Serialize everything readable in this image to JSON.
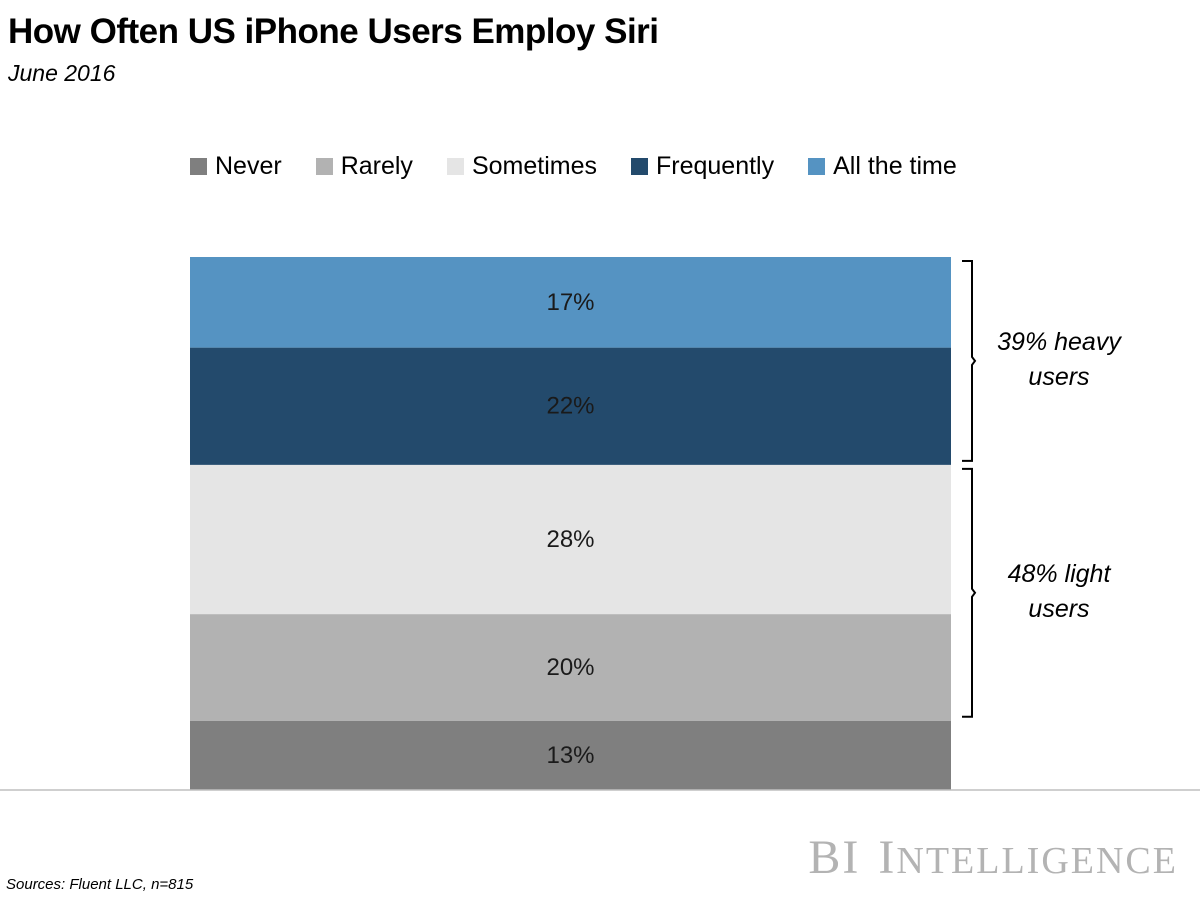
{
  "chart_data": {
    "type": "bar",
    "stacked": true,
    "title": "How Often US iPhone Users Employ Siri",
    "subtitle": "June 2016",
    "categories": [
      ""
    ],
    "series": [
      {
        "name": "Never",
        "values": [
          13
        ],
        "label": "13%",
        "color": "#7f7f7f"
      },
      {
        "name": "Rarely",
        "values": [
          20
        ],
        "label": "20%",
        "color": "#b2b2b2"
      },
      {
        "name": "Sometimes",
        "values": [
          28
        ],
        "label": "28%",
        "color": "#e5e5e5"
      },
      {
        "name": "Frequently",
        "values": [
          22
        ],
        "label": "22%",
        "color": "#234a6c"
      },
      {
        "name": "All the time",
        "values": [
          17
        ],
        "label": "17%",
        "color": "#5593c2"
      }
    ],
    "ylim": [
      0,
      100
    ],
    "legend_position": "top",
    "annotations": [
      {
        "text": "39% heavy users",
        "spans": [
          "Frequently",
          "All the time"
        ]
      },
      {
        "text": "48% light users",
        "spans": [
          "Rarely",
          "Sometimes"
        ]
      }
    ],
    "xlabel": "",
    "ylabel": ""
  },
  "source": "Sources: Fluent LLC, n=815",
  "brand": "BI Intelligence"
}
